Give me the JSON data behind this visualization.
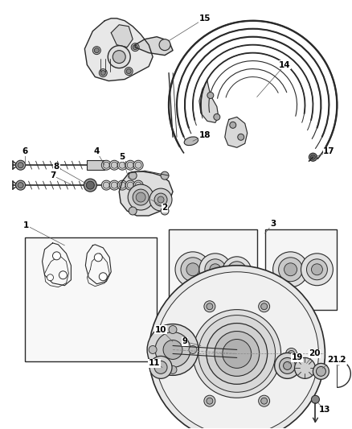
{
  "bg_color": "#f5f5f5",
  "line_color": "#2a2a2a",
  "label_color": "#000000",
  "fig_width": 4.38,
  "fig_height": 5.33,
  "dpi": 100
}
